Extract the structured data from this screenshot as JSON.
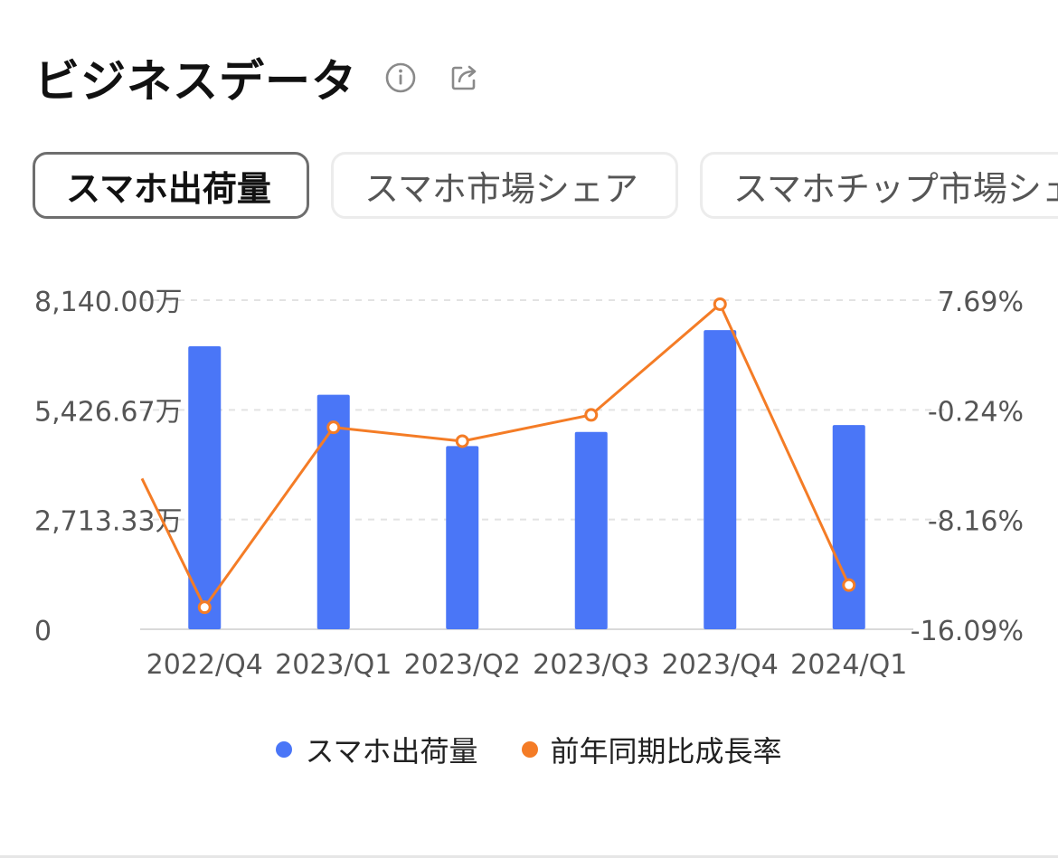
{
  "header": {
    "title": "ビジネスデータ",
    "info_icon": "info-icon",
    "share_icon": "share-icon"
  },
  "tabs": [
    {
      "label": "スマホ出荷量",
      "active": true
    },
    {
      "label": "スマホ市場シェア",
      "active": false
    },
    {
      "label": "スマホチップ市場シェア",
      "active": false
    }
  ],
  "chart_data": {
    "type": "bar",
    "categories": [
      "2022/Q4",
      "2023/Q1",
      "2023/Q2",
      "2023/Q3",
      "2023/Q4",
      "2024/Q1"
    ],
    "series": [
      {
        "name": "スマホ出荷量",
        "type": "bar",
        "axis": "left",
        "color": "#4a76f7",
        "values": [
          7000,
          5800,
          4530,
          4880,
          7400,
          5050
        ]
      },
      {
        "name": "前年同期比成長率",
        "type": "line",
        "axis": "right",
        "color": "#f47c26",
        "values": [
          -14.5,
          -1.5,
          -2.5,
          -0.6,
          7.4,
          -12.9
        ]
      }
    ],
    "left_axis": {
      "ticks": [
        "0",
        "2,713.33万",
        "5,426.67万",
        "8,140.00万"
      ],
      "ylim": [
        0,
        8140
      ],
      "unit": "万"
    },
    "right_axis": {
      "ticks": [
        "-16.09%",
        "-8.16%",
        "-0.24%",
        "7.69%"
      ],
      "ylim": [
        -16.09,
        7.69
      ],
      "unit": "%"
    },
    "grid": true,
    "legend_position": "bottom-center"
  },
  "colors": {
    "bar": "#4a76f7",
    "line": "#f47c26",
    "grid": "#e3e3e3",
    "tick_text": "#555555"
  }
}
